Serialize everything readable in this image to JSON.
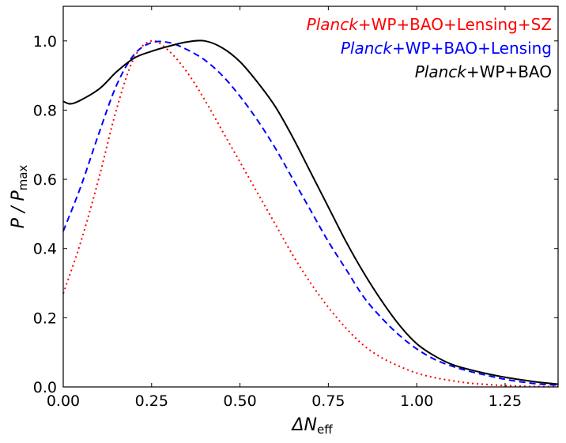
{
  "chart_data": {
    "type": "line",
    "title": "",
    "xlabel": "ΔN",
    "xlabel_sub": "eff",
    "ylabel": "P / P",
    "ylabel_sub": "max",
    "xlim": [
      0,
      1.4
    ],
    "ylim": [
      0,
      1.1
    ],
    "xticks": [
      "0.00",
      "0.25",
      "0.50",
      "0.75",
      "1.00",
      "1.25"
    ],
    "xtick_values": [
      0,
      0.25,
      0.5,
      0.75,
      1.0,
      1.25
    ],
    "yticks": [
      "0.0",
      "0.2",
      "0.4",
      "0.6",
      "0.8",
      "1.0"
    ],
    "ytick_values": [
      0,
      0.2,
      0.4,
      0.6,
      0.8,
      1.0
    ],
    "grid": false,
    "legend_placement": "top-right",
    "series": [
      {
        "name": "Planck+WP+BAO+Lensing+SZ",
        "name_italic": "Planck",
        "name_rest": "+WP+BAO+Lensing+SZ",
        "color": "#ff0000",
        "style": "dotted",
        "x": [
          0,
          0.05,
          0.1,
          0.15,
          0.2,
          0.25,
          0.3,
          0.35,
          0.4,
          0.45,
          0.5,
          0.55,
          0.6,
          0.65,
          0.7,
          0.75,
          0.8,
          0.85,
          0.9,
          0.95,
          1.0,
          1.05,
          1.1,
          1.15,
          1.2,
          1.25,
          1.3,
          1.35,
          1.4
        ],
        "y": [
          0.27,
          0.42,
          0.6,
          0.8,
          0.95,
          1.0,
          0.97,
          0.91,
          0.83,
          0.74,
          0.65,
          0.56,
          0.47,
          0.38,
          0.3,
          0.23,
          0.17,
          0.12,
          0.085,
          0.06,
          0.04,
          0.027,
          0.018,
          0.011,
          0.007,
          0.004,
          0.002,
          0.001,
          0.001
        ]
      },
      {
        "name": "Planck+WP+BAO+Lensing",
        "name_italic": "Planck",
        "name_rest": "+WP+BAO+Lensing",
        "color": "#0000ff",
        "style": "dashed",
        "x": [
          0,
          0.05,
          0.1,
          0.15,
          0.2,
          0.25,
          0.3,
          0.35,
          0.4,
          0.45,
          0.5,
          0.55,
          0.6,
          0.65,
          0.7,
          0.75,
          0.8,
          0.85,
          0.9,
          0.95,
          1.0,
          1.05,
          1.1,
          1.15,
          1.2,
          1.25,
          1.3,
          1.35,
          1.4
        ],
        "y": [
          0.45,
          0.58,
          0.73,
          0.87,
          0.96,
          0.995,
          0.995,
          0.975,
          0.945,
          0.9,
          0.84,
          0.77,
          0.69,
          0.6,
          0.51,
          0.42,
          0.34,
          0.26,
          0.2,
          0.15,
          0.11,
          0.08,
          0.06,
          0.045,
          0.033,
          0.022,
          0.014,
          0.008,
          0.005
        ]
      },
      {
        "name": "Planck+WP+BAO",
        "name_italic": "Planck",
        "name_rest": "+WP+BAO",
        "color": "#000000",
        "style": "solid",
        "x": [
          0,
          0.03,
          0.1,
          0.15,
          0.2,
          0.25,
          0.3,
          0.35,
          0.4,
          0.45,
          0.5,
          0.55,
          0.6,
          0.65,
          0.7,
          0.75,
          0.8,
          0.85,
          0.9,
          0.95,
          1.0,
          1.05,
          1.1,
          1.15,
          1.2,
          1.25,
          1.3,
          1.35,
          1.4
        ],
        "y": [
          0.825,
          0.82,
          0.86,
          0.91,
          0.95,
          0.97,
          0.985,
          0.997,
          1.0,
          0.98,
          0.94,
          0.88,
          0.81,
          0.72,
          0.62,
          0.52,
          0.42,
          0.33,
          0.25,
          0.18,
          0.125,
          0.09,
          0.065,
          0.05,
          0.038,
          0.028,
          0.02,
          0.013,
          0.008
        ]
      }
    ]
  }
}
